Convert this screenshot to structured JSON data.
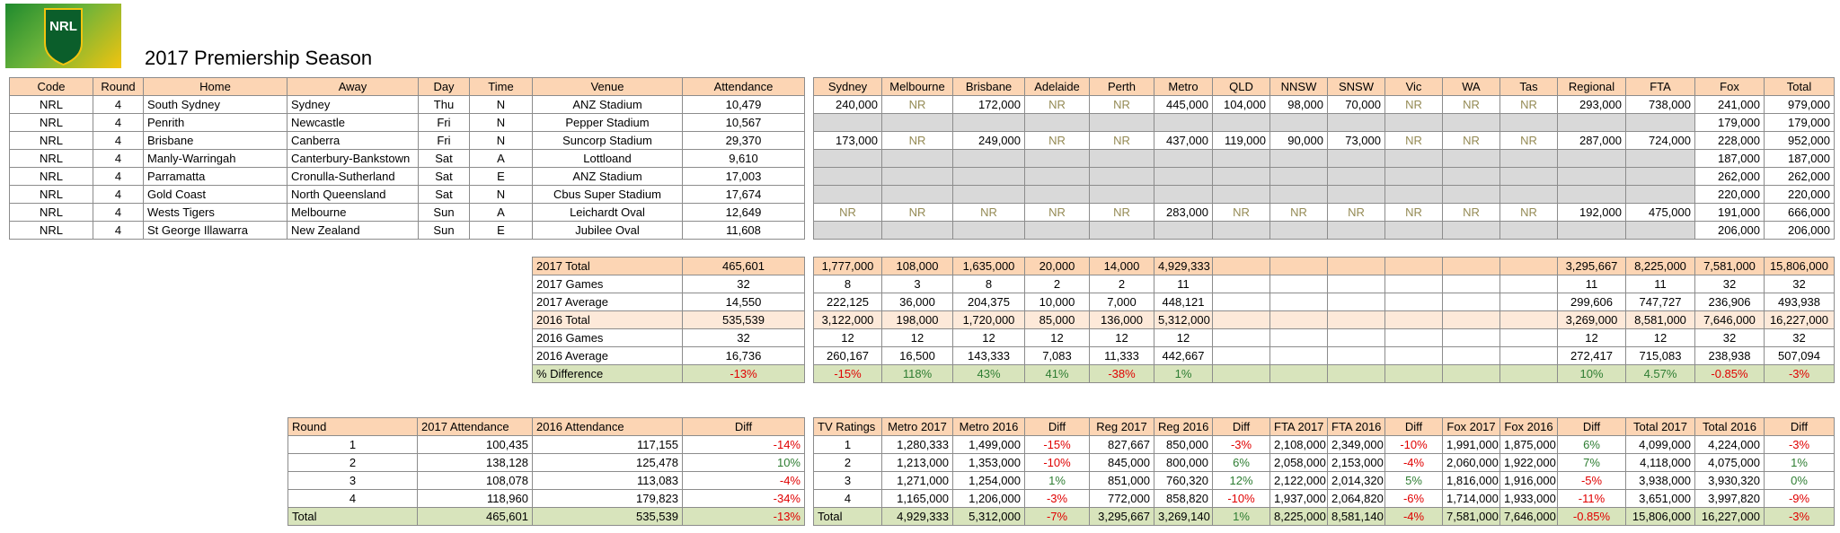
{
  "logo": "NRL",
  "title": "2017 Premiership Season",
  "games": {
    "header": [
      "Code",
      "Round",
      "Home",
      "Away",
      "Day",
      "Time",
      "Venue",
      "Attendance"
    ],
    "rows": [
      [
        "NRL",
        "4",
        "South Sydney",
        "Sydney",
        "Thu",
        "N",
        "ANZ Stadium",
        "10,479"
      ],
      [
        "NRL",
        "4",
        "Penrith",
        "Newcastle",
        "Fri",
        "N",
        "Pepper Stadium",
        "10,567"
      ],
      [
        "NRL",
        "4",
        "Brisbane",
        "Canberra",
        "Fri",
        "N",
        "Suncorp Stadium",
        "29,370"
      ],
      [
        "NRL",
        "4",
        "Manly-Warringah",
        "Canterbury-Bankstown",
        "Sat",
        "A",
        "Lottloand",
        "9,610"
      ],
      [
        "NRL",
        "4",
        "Parramatta",
        "Cronulla-Sutherland",
        "Sat",
        "E",
        "ANZ Stadium",
        "17,003"
      ],
      [
        "NRL",
        "4",
        "Gold Coast",
        "North Queensland",
        "Sat",
        "N",
        "Cbus Super Stadium",
        "17,674"
      ],
      [
        "NRL",
        "4",
        "Wests Tigers",
        "Melbourne",
        "Sun",
        "A",
        "Leichardt Oval",
        "12,649"
      ],
      [
        "NRL",
        "4",
        "St George Illawarra",
        "New Zealand",
        "Sun",
        "E",
        "Jubilee Oval",
        "11,608"
      ]
    ]
  },
  "ratings": {
    "header": [
      "Sydney",
      "Melbourne",
      "Brisbane",
      "Adelaide",
      "Perth",
      "Metro",
      "QLD",
      "NNSW",
      "SNSW",
      "Vic",
      "WA",
      "Tas",
      "Regional",
      "FTA",
      "Fox",
      "Total"
    ],
    "rows": [
      [
        "240,000",
        "NR",
        "172,000",
        "NR",
        "NR",
        "445,000",
        "104,000",
        "98,000",
        "70,000",
        "NR",
        "NR",
        "NR",
        "293,000",
        "738,000",
        "241,000",
        "979,000"
      ],
      [
        null,
        null,
        null,
        null,
        null,
        null,
        null,
        null,
        null,
        null,
        null,
        null,
        null,
        null,
        "179,000",
        "179,000"
      ],
      [
        "173,000",
        "NR",
        "249,000",
        "NR",
        "NR",
        "437,000",
        "119,000",
        "90,000",
        "73,000",
        "NR",
        "NR",
        "NR",
        "287,000",
        "724,000",
        "228,000",
        "952,000"
      ],
      [
        null,
        null,
        null,
        null,
        null,
        null,
        null,
        null,
        null,
        null,
        null,
        null,
        null,
        null,
        "187,000",
        "187,000"
      ],
      [
        null,
        null,
        null,
        null,
        null,
        null,
        null,
        null,
        null,
        null,
        null,
        null,
        null,
        null,
        "262,000",
        "262,000"
      ],
      [
        null,
        null,
        null,
        null,
        null,
        null,
        null,
        null,
        null,
        null,
        null,
        null,
        null,
        null,
        "220,000",
        "220,000"
      ],
      [
        "NR",
        "NR",
        "NR",
        "NR",
        "NR",
        "283,000",
        "NR",
        "NR",
        "NR",
        "NR",
        "NR",
        "NR",
        "192,000",
        "475,000",
        "191,000",
        "666,000"
      ],
      [
        null,
        null,
        null,
        null,
        null,
        null,
        null,
        null,
        null,
        null,
        null,
        null,
        null,
        null,
        "206,000",
        "206,000"
      ]
    ]
  },
  "summary": {
    "rows": [
      [
        "2017 Total",
        "465,601"
      ],
      [
        "2017 Games",
        "32"
      ],
      [
        "2017 Average",
        "14,550"
      ],
      [
        "2016 Total",
        "535,539"
      ],
      [
        "2016 Games",
        "32"
      ],
      [
        "2016 Average",
        "16,736"
      ],
      [
        "% Difference",
        "-13%"
      ]
    ]
  },
  "summary_ratings": {
    "rows": [
      [
        "1,777,000",
        "108,000",
        "1,635,000",
        "20,000",
        "14,000",
        "4,929,333",
        null,
        null,
        null,
        null,
        null,
        null,
        "3,295,667",
        "8,225,000",
        "7,581,000",
        "15,806,000"
      ],
      [
        "8",
        "3",
        "8",
        "2",
        "2",
        "11",
        null,
        null,
        null,
        null,
        null,
        null,
        "11",
        "11",
        "32",
        "32"
      ],
      [
        "222,125",
        "36,000",
        "204,375",
        "10,000",
        "7,000",
        "448,121",
        null,
        null,
        null,
        null,
        null,
        null,
        "299,606",
        "747,727",
        "236,906",
        "493,938"
      ],
      [
        "3,122,000",
        "198,000",
        "1,720,000",
        "85,000",
        "136,000",
        "5,312,000",
        null,
        null,
        null,
        null,
        null,
        null,
        "3,269,000",
        "8,581,000",
        "7,646,000",
        "16,227,000"
      ],
      [
        "12",
        "12",
        "12",
        "12",
        "12",
        "12",
        null,
        null,
        null,
        null,
        null,
        null,
        "12",
        "12",
        "32",
        "32"
      ],
      [
        "260,167",
        "16,500",
        "143,333",
        "7,083",
        "11,333",
        "442,667",
        null,
        null,
        null,
        null,
        null,
        null,
        "272,417",
        "715,083",
        "238,938",
        "507,094"
      ],
      [
        "-15%",
        "118%",
        "43%",
        "41%",
        "-38%",
        "1%",
        null,
        null,
        null,
        null,
        null,
        null,
        "10%",
        "4.57%",
        "-0.85%",
        "-3%"
      ]
    ]
  },
  "rounds": {
    "header": [
      "Round",
      "2017 Attendance",
      "2016 Attendance",
      "Diff"
    ],
    "rows": [
      [
        "1",
        "100,435",
        "117,155",
        "-14%"
      ],
      [
        "2",
        "138,128",
        "125,478",
        "10%"
      ],
      [
        "3",
        "108,078",
        "113,083",
        "-4%"
      ],
      [
        "4",
        "118,960",
        "179,823",
        "-34%"
      ],
      [
        "Total",
        "465,601",
        "535,539",
        "-13%"
      ]
    ]
  },
  "tv": {
    "header": [
      "TV Ratings",
      "Metro 2017",
      "Metro 2016",
      "Diff",
      "Reg 2017",
      "Reg 2016",
      "Diff",
      "FTA 2017",
      "FTA 2016",
      "Diff",
      "Fox 2017",
      "Fox 2016",
      "Diff",
      "Total 2017",
      "Total 2016",
      "Diff"
    ],
    "rows": [
      [
        "1",
        "1,280,333",
        "1,499,000",
        "-15%",
        "827,667",
        "850,000",
        "-3%",
        "2,108,000",
        "2,349,000",
        "-10%",
        "1,991,000",
        "1,875,000",
        "6%",
        "4,099,000",
        "4,224,000",
        "-3%"
      ],
      [
        "2",
        "1,213,000",
        "1,353,000",
        "-10%",
        "845,000",
        "800,000",
        "6%",
        "2,058,000",
        "2,153,000",
        "-4%",
        "2,060,000",
        "1,922,000",
        "7%",
        "4,118,000",
        "4,075,000",
        "1%"
      ],
      [
        "3",
        "1,271,000",
        "1,254,000",
        "1%",
        "851,000",
        "760,320",
        "12%",
        "2,122,000",
        "2,014,320",
        "5%",
        "1,816,000",
        "1,916,000",
        "-5%",
        "3,938,000",
        "3,930,320",
        "0%"
      ],
      [
        "4",
        "1,165,000",
        "1,206,000",
        "-3%",
        "772,000",
        "858,820",
        "-10%",
        "1,937,000",
        "2,064,820",
        "-6%",
        "1,714,000",
        "1,933,000",
        "-11%",
        "3,651,000",
        "3,997,820",
        "-9%"
      ],
      [
        "Total",
        "4,929,333",
        "5,312,000",
        "-7%",
        "3,295,667",
        "3,269,140",
        "1%",
        "8,225,000",
        "8,581,140",
        "-4%",
        "7,581,000",
        "7,646,000",
        "-0.85%",
        "15,806,000",
        "16,227,000",
        "-3%"
      ]
    ]
  }
}
